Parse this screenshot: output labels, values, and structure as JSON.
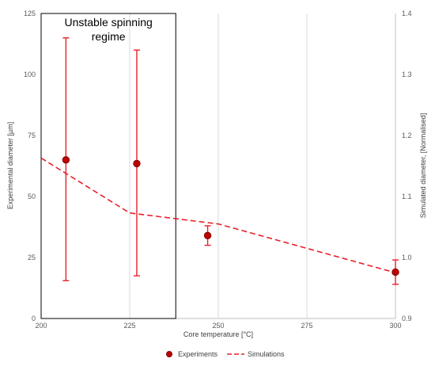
{
  "chart_data": {
    "type": "scatter",
    "title": "",
    "xlabel": "Core temperature [°C]",
    "ylabel": "Experimental diameter [µm]",
    "y2label": "Simulated diameter, [Normalised]",
    "xlim": [
      200,
      300
    ],
    "ylim": [
      0,
      125
    ],
    "y2lim": [
      0.9,
      1.4
    ],
    "x_ticks": [
      "200",
      "225",
      "250",
      "275",
      "300"
    ],
    "y_ticks": [
      "0",
      "25",
      "50",
      "75",
      "100",
      "125"
    ],
    "y2_ticks": [
      "0.9",
      "1.0",
      "1.1",
      "1.2",
      "1.3",
      "1.4"
    ],
    "grid": "vertical",
    "legend": "bottom",
    "colors": {
      "series": "#e8202a",
      "marker_fill": "#c00000",
      "marker_edge": "#7f0000",
      "box": "#000000"
    },
    "series": [
      {
        "name": "Experiments",
        "axis": "left",
        "style": "marker-with-error-bars",
        "x": [
          207,
          227,
          247,
          300
        ],
        "y": [
          65,
          63.5,
          34,
          19
        ],
        "err_low": [
          15.5,
          17.5,
          30,
          14
        ],
        "err_high": [
          115,
          110,
          38,
          24
        ]
      },
      {
        "name": "Simulations",
        "axis": "right",
        "style": "dashed-line",
        "x": [
          200,
          225,
          250,
          300
        ],
        "y": [
          1.163,
          1.073,
          1.055,
          0.975
        ]
      }
    ],
    "annotations": [
      {
        "text_lines": [
          "Unstable spinning",
          "regime"
        ],
        "x_range": [
          200,
          238
        ],
        "y_range": [
          0,
          125
        ]
      }
    ]
  }
}
